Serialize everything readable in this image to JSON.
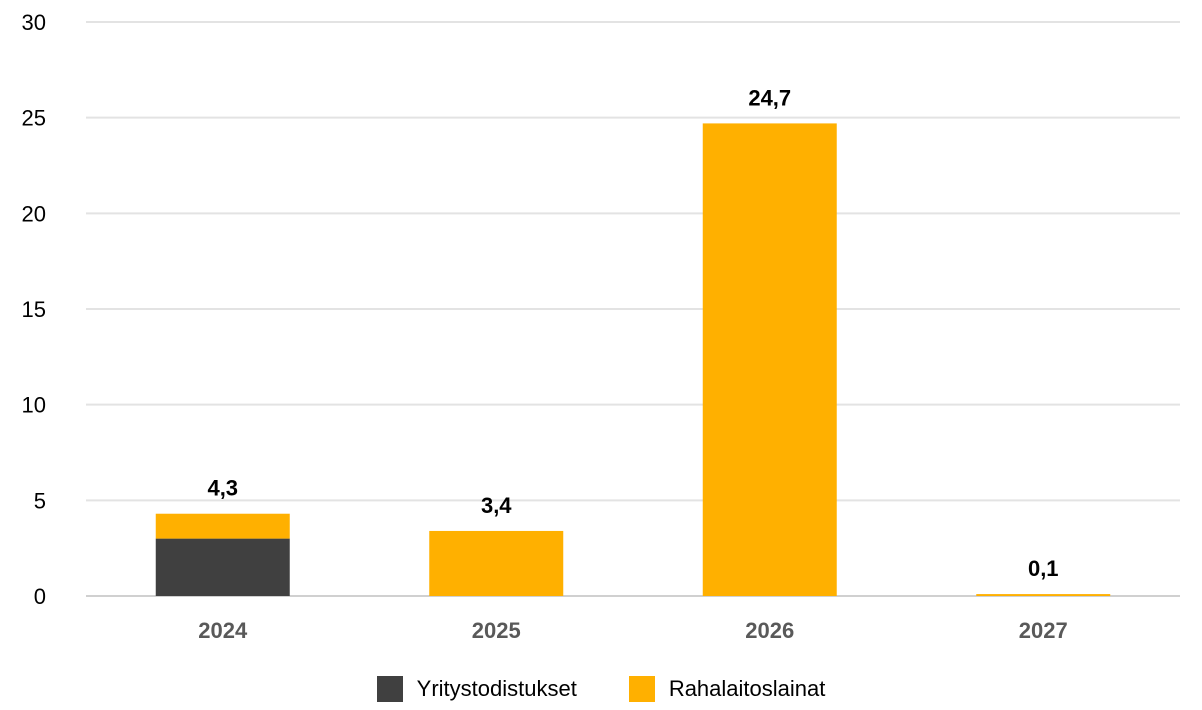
{
  "chart_data": {
    "type": "bar",
    "stacked": true,
    "categories": [
      "2024",
      "2025",
      "2026",
      "2027"
    ],
    "series": [
      {
        "name": "Yritystodistukset",
        "color": "#404040",
        "values": [
          3.0,
          0,
          0,
          0
        ]
      },
      {
        "name": "Rahalaitoslainat",
        "color": "#FFB000",
        "values": [
          1.3,
          3.4,
          24.7,
          0.1
        ]
      }
    ],
    "totals": [
      4.3,
      3.4,
      24.7,
      0.1
    ],
    "total_labels": [
      "4,3",
      "3,4",
      "24,7",
      "0,1"
    ],
    "yticks": [
      "0",
      "5",
      "10",
      "15",
      "20",
      "25",
      "30"
    ],
    "ylim": [
      0,
      30
    ],
    "grid": true,
    "legend_position": "bottom"
  }
}
